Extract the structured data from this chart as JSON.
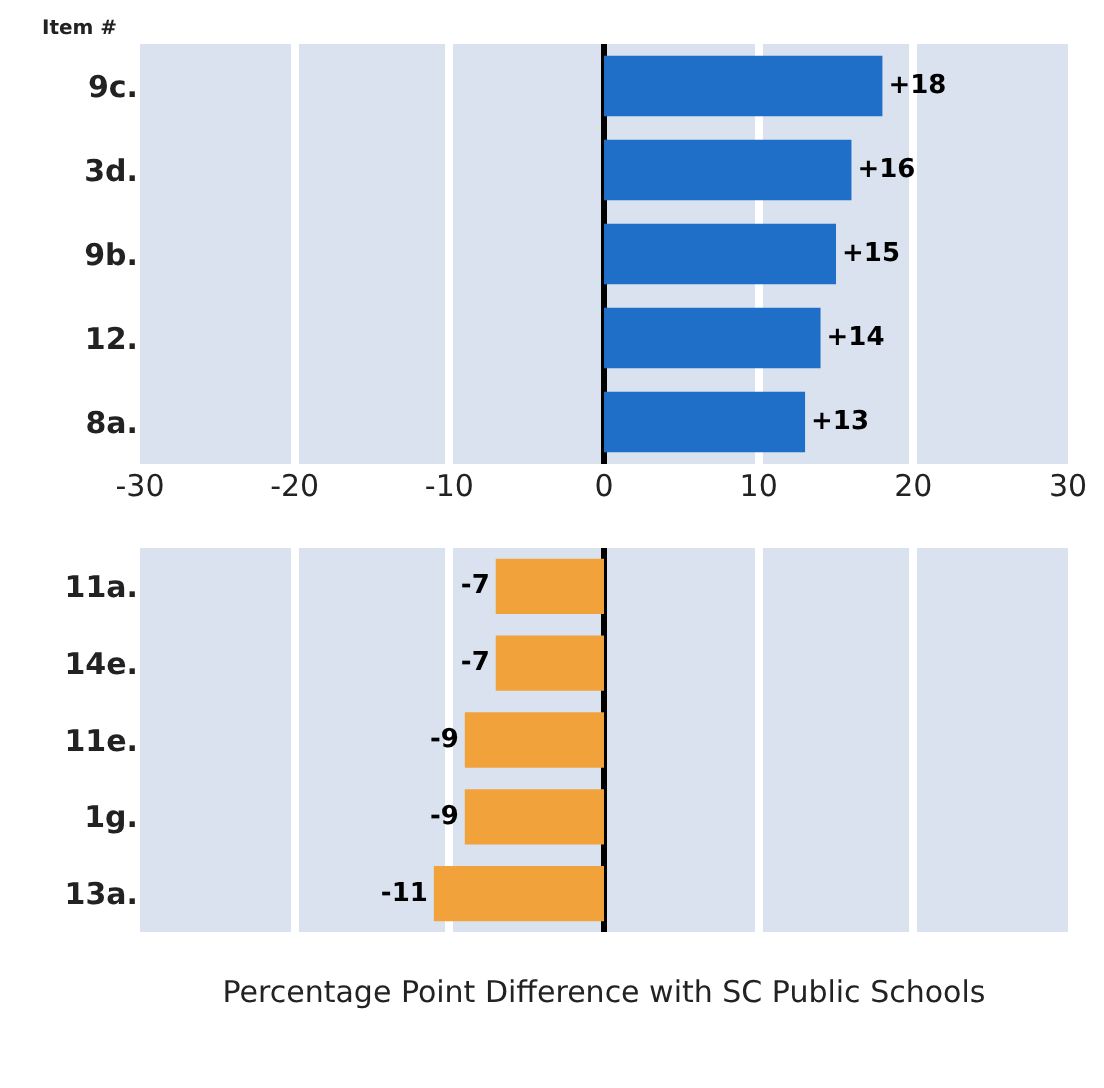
{
  "chart_data": [
    {
      "type": "bar",
      "orientation": "horizontal",
      "ylabel": "Item #",
      "categories": [
        "9c.",
        "3d.",
        "9b.",
        "12.",
        "8a."
      ],
      "series": [
        {
          "color": "#1f6fc8",
          "values": [
            18,
            16,
            15,
            14,
            13
          ],
          "value_labels": [
            "+18",
            "+16",
            "+15",
            "+14",
            "+13"
          ]
        }
      ],
      "xlim": [
        -30,
        30
      ],
      "xticks": [
        -30,
        -20,
        -10,
        0,
        10,
        20,
        30
      ],
      "grid": "x",
      "legend": false
    },
    {
      "type": "bar",
      "orientation": "horizontal",
      "xlabel": "Percentage Point Difference with SC Public Schools",
      "categories": [
        "11a.",
        "14e.",
        "11e.",
        "1g.",
        "13a."
      ],
      "series": [
        {
          "color": "#f2a23a",
          "values": [
            -7,
            -7,
            -9,
            -9,
            -11
          ]
        }
      ],
      "data_labels": true,
      "xlim": [
        -30,
        30
      ],
      "xticks": [
        -30,
        -20,
        -10,
        0,
        10,
        20,
        30
      ],
      "grid": "x",
      "legend": false,
      "tick_labels": "y"
    }
  ]
}
